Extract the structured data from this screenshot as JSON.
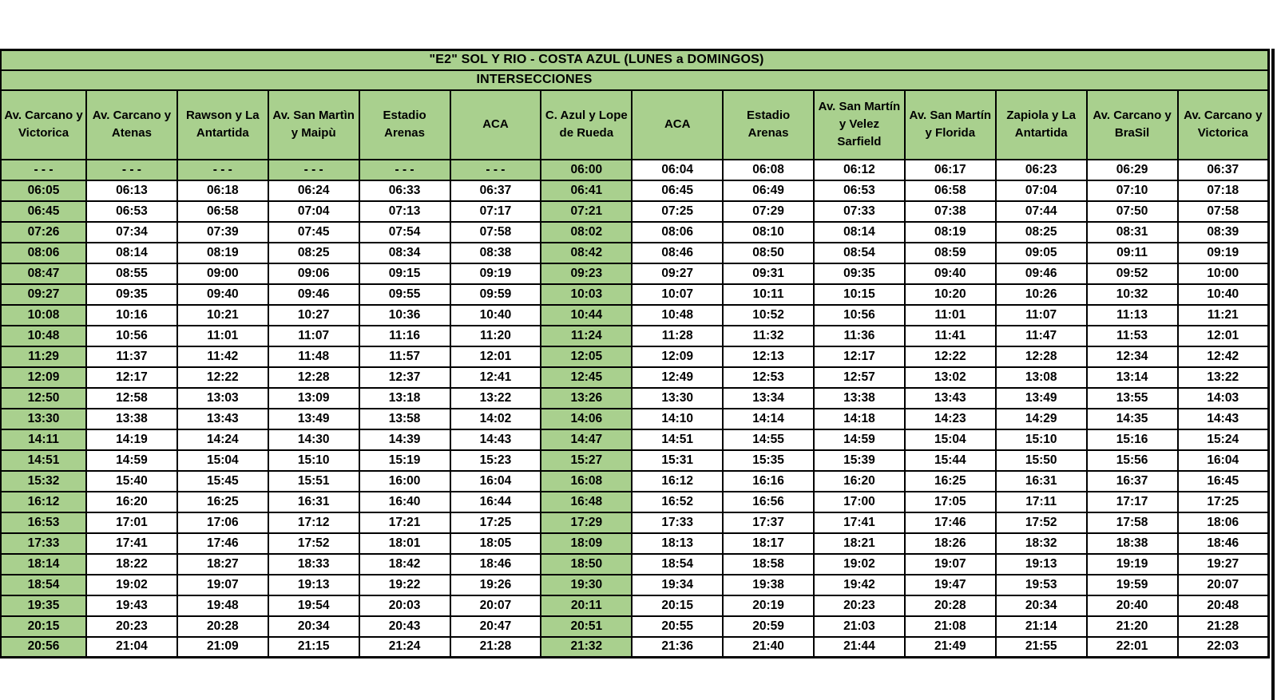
{
  "page": {
    "title": "\"E2\" SOL Y RIO - COSTA AZUL  (LUNES a DOMINGOS)",
    "subtitle": "INTERSECCIONES"
  },
  "colors": {
    "header_green": "#a9d08e",
    "grid_black": "#000000",
    "cell_white": "#ffffff"
  },
  "table": {
    "columns": [
      "Av. Carcano y Victorica",
      "Av. Carcano y Atenas",
      "Rawson y La Antartida",
      "Av. San Martìn y Maipù",
      "Estadio Arenas",
      "ACA",
      "C. Azul y Lope de Rueda",
      "ACA",
      "Estadio Arenas",
      "Av. San Martín y Velez Sarfield",
      "Av. San Martín y Florida",
      "Zapiola y La Antartida",
      "Av. Carcano y BraSil",
      "Av. Carcano y Victorica"
    ],
    "highlight_columns": [
      0,
      6
    ],
    "no_service_placeholder": "- - -",
    "rows": [
      [
        "- - -",
        "- - -",
        "- - -",
        "- - -",
        "- - -",
        "- - -",
        "06:00",
        "06:04",
        "06:08",
        "06:12",
        "06:17",
        "06:23",
        "06:29",
        "06:37"
      ],
      [
        "06:05",
        "06:13",
        "06:18",
        "06:24",
        "06:33",
        "06:37",
        "06:41",
        "06:45",
        "06:49",
        "06:53",
        "06:58",
        "07:04",
        "07:10",
        "07:18"
      ],
      [
        "06:45",
        "06:53",
        "06:58",
        "07:04",
        "07:13",
        "07:17",
        "07:21",
        "07:25",
        "07:29",
        "07:33",
        "07:38",
        "07:44",
        "07:50",
        "07:58"
      ],
      [
        "07:26",
        "07:34",
        "07:39",
        "07:45",
        "07:54",
        "07:58",
        "08:02",
        "08:06",
        "08:10",
        "08:14",
        "08:19",
        "08:25",
        "08:31",
        "08:39"
      ],
      [
        "08:06",
        "08:14",
        "08:19",
        "08:25",
        "08:34",
        "08:38",
        "08:42",
        "08:46",
        "08:50",
        "08:54",
        "08:59",
        "09:05",
        "09:11",
        "09:19"
      ],
      [
        "08:47",
        "08:55",
        "09:00",
        "09:06",
        "09:15",
        "09:19",
        "09:23",
        "09:27",
        "09:31",
        "09:35",
        "09:40",
        "09:46",
        "09:52",
        "10:00"
      ],
      [
        "09:27",
        "09:35",
        "09:40",
        "09:46",
        "09:55",
        "09:59",
        "10:03",
        "10:07",
        "10:11",
        "10:15",
        "10:20",
        "10:26",
        "10:32",
        "10:40"
      ],
      [
        "10:08",
        "10:16",
        "10:21",
        "10:27",
        "10:36",
        "10:40",
        "10:44",
        "10:48",
        "10:52",
        "10:56",
        "11:01",
        "11:07",
        "11:13",
        "11:21"
      ],
      [
        "10:48",
        "10:56",
        "11:01",
        "11:07",
        "11:16",
        "11:20",
        "11:24",
        "11:28",
        "11:32",
        "11:36",
        "11:41",
        "11:47",
        "11:53",
        "12:01"
      ],
      [
        "11:29",
        "11:37",
        "11:42",
        "11:48",
        "11:57",
        "12:01",
        "12:05",
        "12:09",
        "12:13",
        "12:17",
        "12:22",
        "12:28",
        "12:34",
        "12:42"
      ],
      [
        "12:09",
        "12:17",
        "12:22",
        "12:28",
        "12:37",
        "12:41",
        "12:45",
        "12:49",
        "12:53",
        "12:57",
        "13:02",
        "13:08",
        "13:14",
        "13:22"
      ],
      [
        "12:50",
        "12:58",
        "13:03",
        "13:09",
        "13:18",
        "13:22",
        "13:26",
        "13:30",
        "13:34",
        "13:38",
        "13:43",
        "13:49",
        "13:55",
        "14:03"
      ],
      [
        "13:30",
        "13:38",
        "13:43",
        "13:49",
        "13:58",
        "14:02",
        "14:06",
        "14:10",
        "14:14",
        "14:18",
        "14:23",
        "14:29",
        "14:35",
        "14:43"
      ],
      [
        "14:11",
        "14:19",
        "14:24",
        "14:30",
        "14:39",
        "14:43",
        "14:47",
        "14:51",
        "14:55",
        "14:59",
        "15:04",
        "15:10",
        "15:16",
        "15:24"
      ],
      [
        "14:51",
        "14:59",
        "15:04",
        "15:10",
        "15:19",
        "15:23",
        "15:27",
        "15:31",
        "15:35",
        "15:39",
        "15:44",
        "15:50",
        "15:56",
        "16:04"
      ],
      [
        "15:32",
        "15:40",
        "15:45",
        "15:51",
        "16:00",
        "16:04",
        "16:08",
        "16:12",
        "16:16",
        "16:20",
        "16:25",
        "16:31",
        "16:37",
        "16:45"
      ],
      [
        "16:12",
        "16:20",
        "16:25",
        "16:31",
        "16:40",
        "16:44",
        "16:48",
        "16:52",
        "16:56",
        "17:00",
        "17:05",
        "17:11",
        "17:17",
        "17:25"
      ],
      [
        "16:53",
        "17:01",
        "17:06",
        "17:12",
        "17:21",
        "17:25",
        "17:29",
        "17:33",
        "17:37",
        "17:41",
        "17:46",
        "17:52",
        "17:58",
        "18:06"
      ],
      [
        "17:33",
        "17:41",
        "17:46",
        "17:52",
        "18:01",
        "18:05",
        "18:09",
        "18:13",
        "18:17",
        "18:21",
        "18:26",
        "18:32",
        "18:38",
        "18:46"
      ],
      [
        "18:14",
        "18:22",
        "18:27",
        "18:33",
        "18:42",
        "18:46",
        "18:50",
        "18:54",
        "18:58",
        "19:02",
        "19:07",
        "19:13",
        "19:19",
        "19:27"
      ],
      [
        "18:54",
        "19:02",
        "19:07",
        "19:13",
        "19:22",
        "19:26",
        "19:30",
        "19:34",
        "19:38",
        "19:42",
        "19:47",
        "19:53",
        "19:59",
        "20:07"
      ],
      [
        "19:35",
        "19:43",
        "19:48",
        "19:54",
        "20:03",
        "20:07",
        "20:11",
        "20:15",
        "20:19",
        "20:23",
        "20:28",
        "20:34",
        "20:40",
        "20:48"
      ],
      [
        "20:15",
        "20:23",
        "20:28",
        "20:34",
        "20:43",
        "20:47",
        "20:51",
        "20:55",
        "20:59",
        "21:03",
        "21:08",
        "21:14",
        "21:20",
        "21:28"
      ],
      [
        "20:56",
        "21:04",
        "21:09",
        "21:15",
        "21:24",
        "21:28",
        "21:32",
        "21:36",
        "21:40",
        "21:44",
        "21:49",
        "21:55",
        "22:01",
        "22:03"
      ]
    ]
  }
}
